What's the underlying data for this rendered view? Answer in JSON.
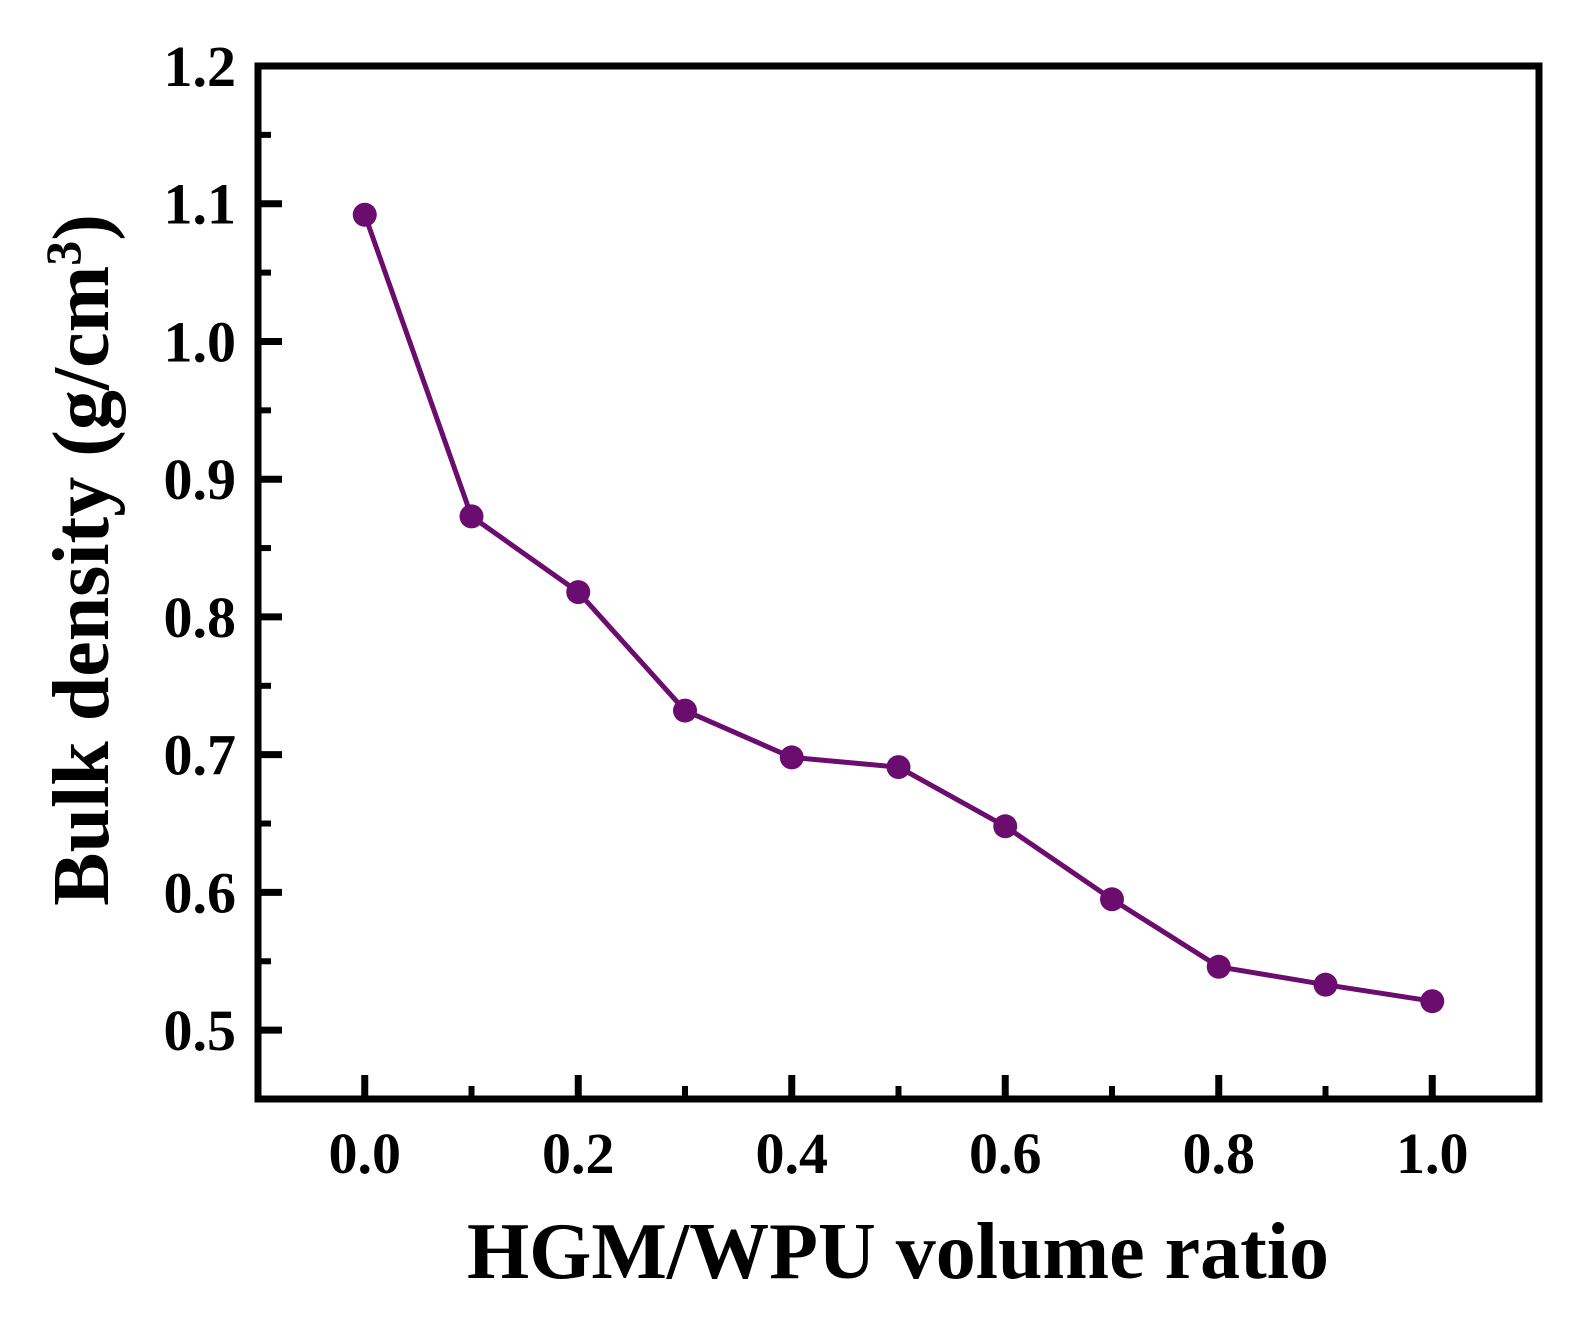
{
  "chart_data": {
    "type": "line",
    "title": "",
    "xlabel": "HGM/WPU volume ratio",
    "ylabel": {
      "main": "Bulk density (g/cm",
      "superscript": "3",
      "close": ")"
    },
    "xlim": [
      -0.1,
      1.1
    ],
    "ylim": [
      0.45,
      1.2
    ],
    "x_ticks": [
      0.0,
      0.2,
      0.4,
      0.6,
      0.8,
      1.0
    ],
    "x_tick_labels": [
      "0.0",
      "0.2",
      "0.4",
      "0.6",
      "0.8",
      "1.0"
    ],
    "x_minor_ticks": [
      0.1,
      0.3,
      0.5,
      0.7,
      0.9
    ],
    "y_ticks": [
      0.5,
      0.6,
      0.7,
      0.8,
      0.9,
      1.0,
      1.1,
      1.2
    ],
    "y_tick_labels": [
      "0.5",
      "0.6",
      "0.7",
      "0.8",
      "0.9",
      "1.0",
      "1.1",
      "1.2"
    ],
    "y_minor_ticks": [
      0.55,
      0.65,
      0.75,
      0.85,
      0.95,
      1.05,
      1.15
    ],
    "grid": false,
    "legend": "none",
    "series": [
      {
        "color": "#6a0d6e",
        "marker": "circle",
        "x": [
          0.0,
          0.1,
          0.2,
          0.3,
          0.4,
          0.5,
          0.6,
          0.7,
          0.8,
          0.9,
          1.0
        ],
        "y": [
          1.092,
          0.873,
          0.818,
          0.732,
          0.698,
          0.691,
          0.648,
          0.595,
          0.546,
          0.533,
          0.521
        ]
      }
    ]
  }
}
